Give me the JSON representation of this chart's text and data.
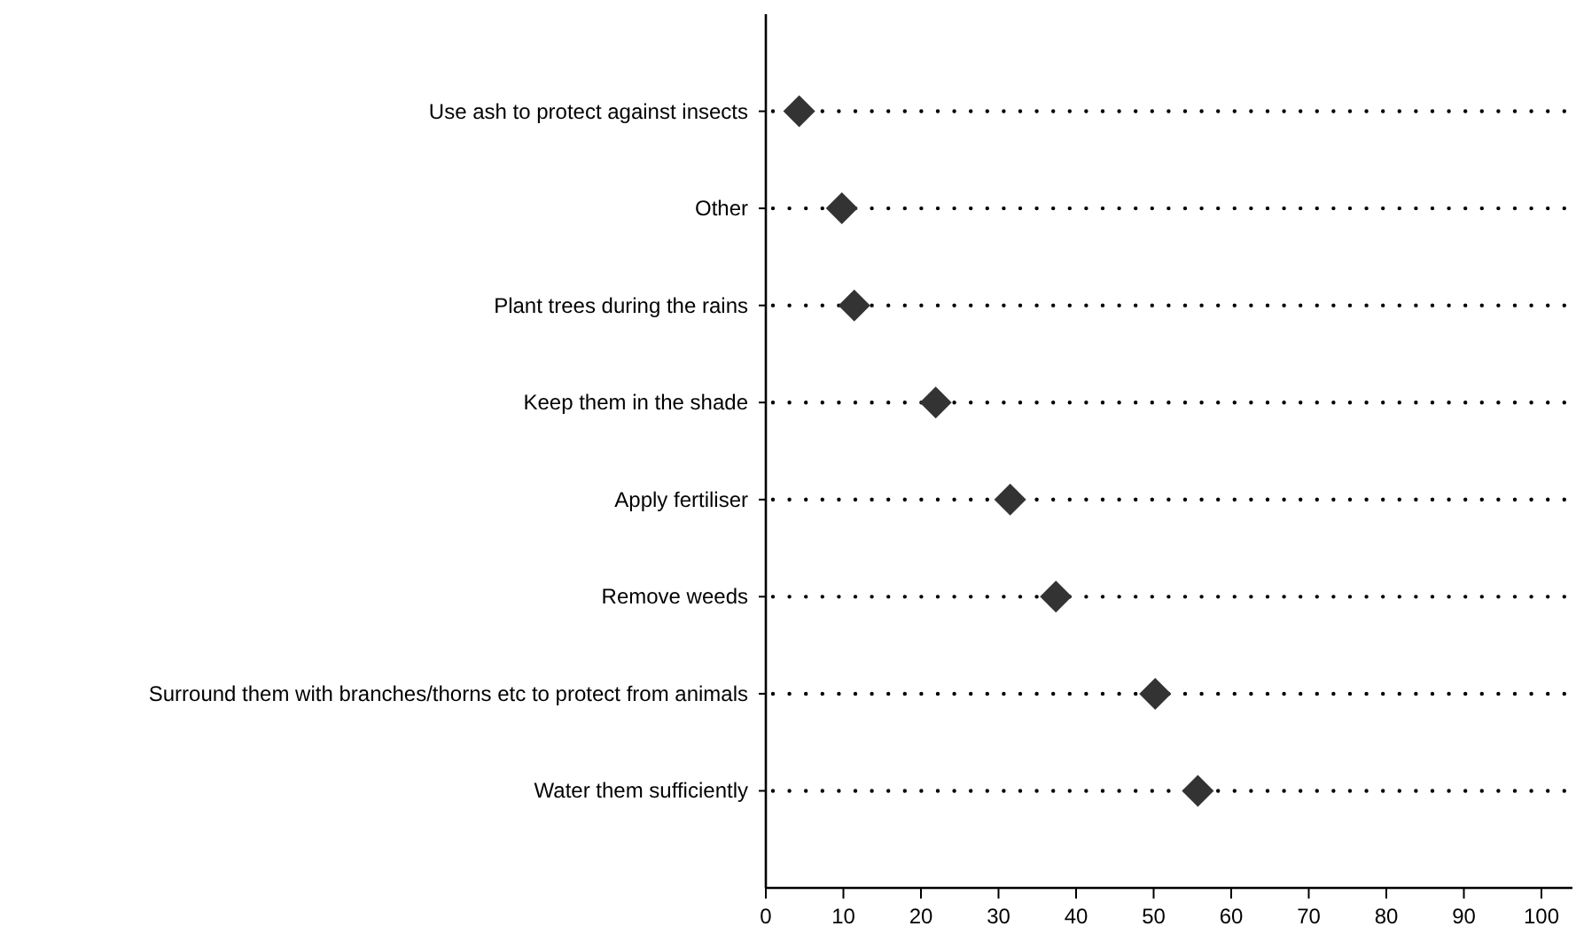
{
  "chart_data": {
    "type": "scatter",
    "orientation": "horizontal",
    "categories": [
      "Use ash to protect against insects",
      "Other",
      "Plant trees during the rains",
      "Keep them in the shade",
      "Apply fertiliser",
      "Remove weeds",
      "Surround them with branches/thorns etc to protect from animals",
      "Water them sufficiently"
    ],
    "values": [
      4.3,
      9.8,
      11.4,
      21.9,
      31.5,
      37.4,
      50.2,
      55.7
    ],
    "color": "#333333",
    "marker": "diamond",
    "xlim": [
      0,
      104
    ],
    "xticks": [
      0,
      10,
      20,
      30,
      40,
      50,
      60,
      70,
      80,
      90,
      100
    ],
    "grid": "y"
  }
}
